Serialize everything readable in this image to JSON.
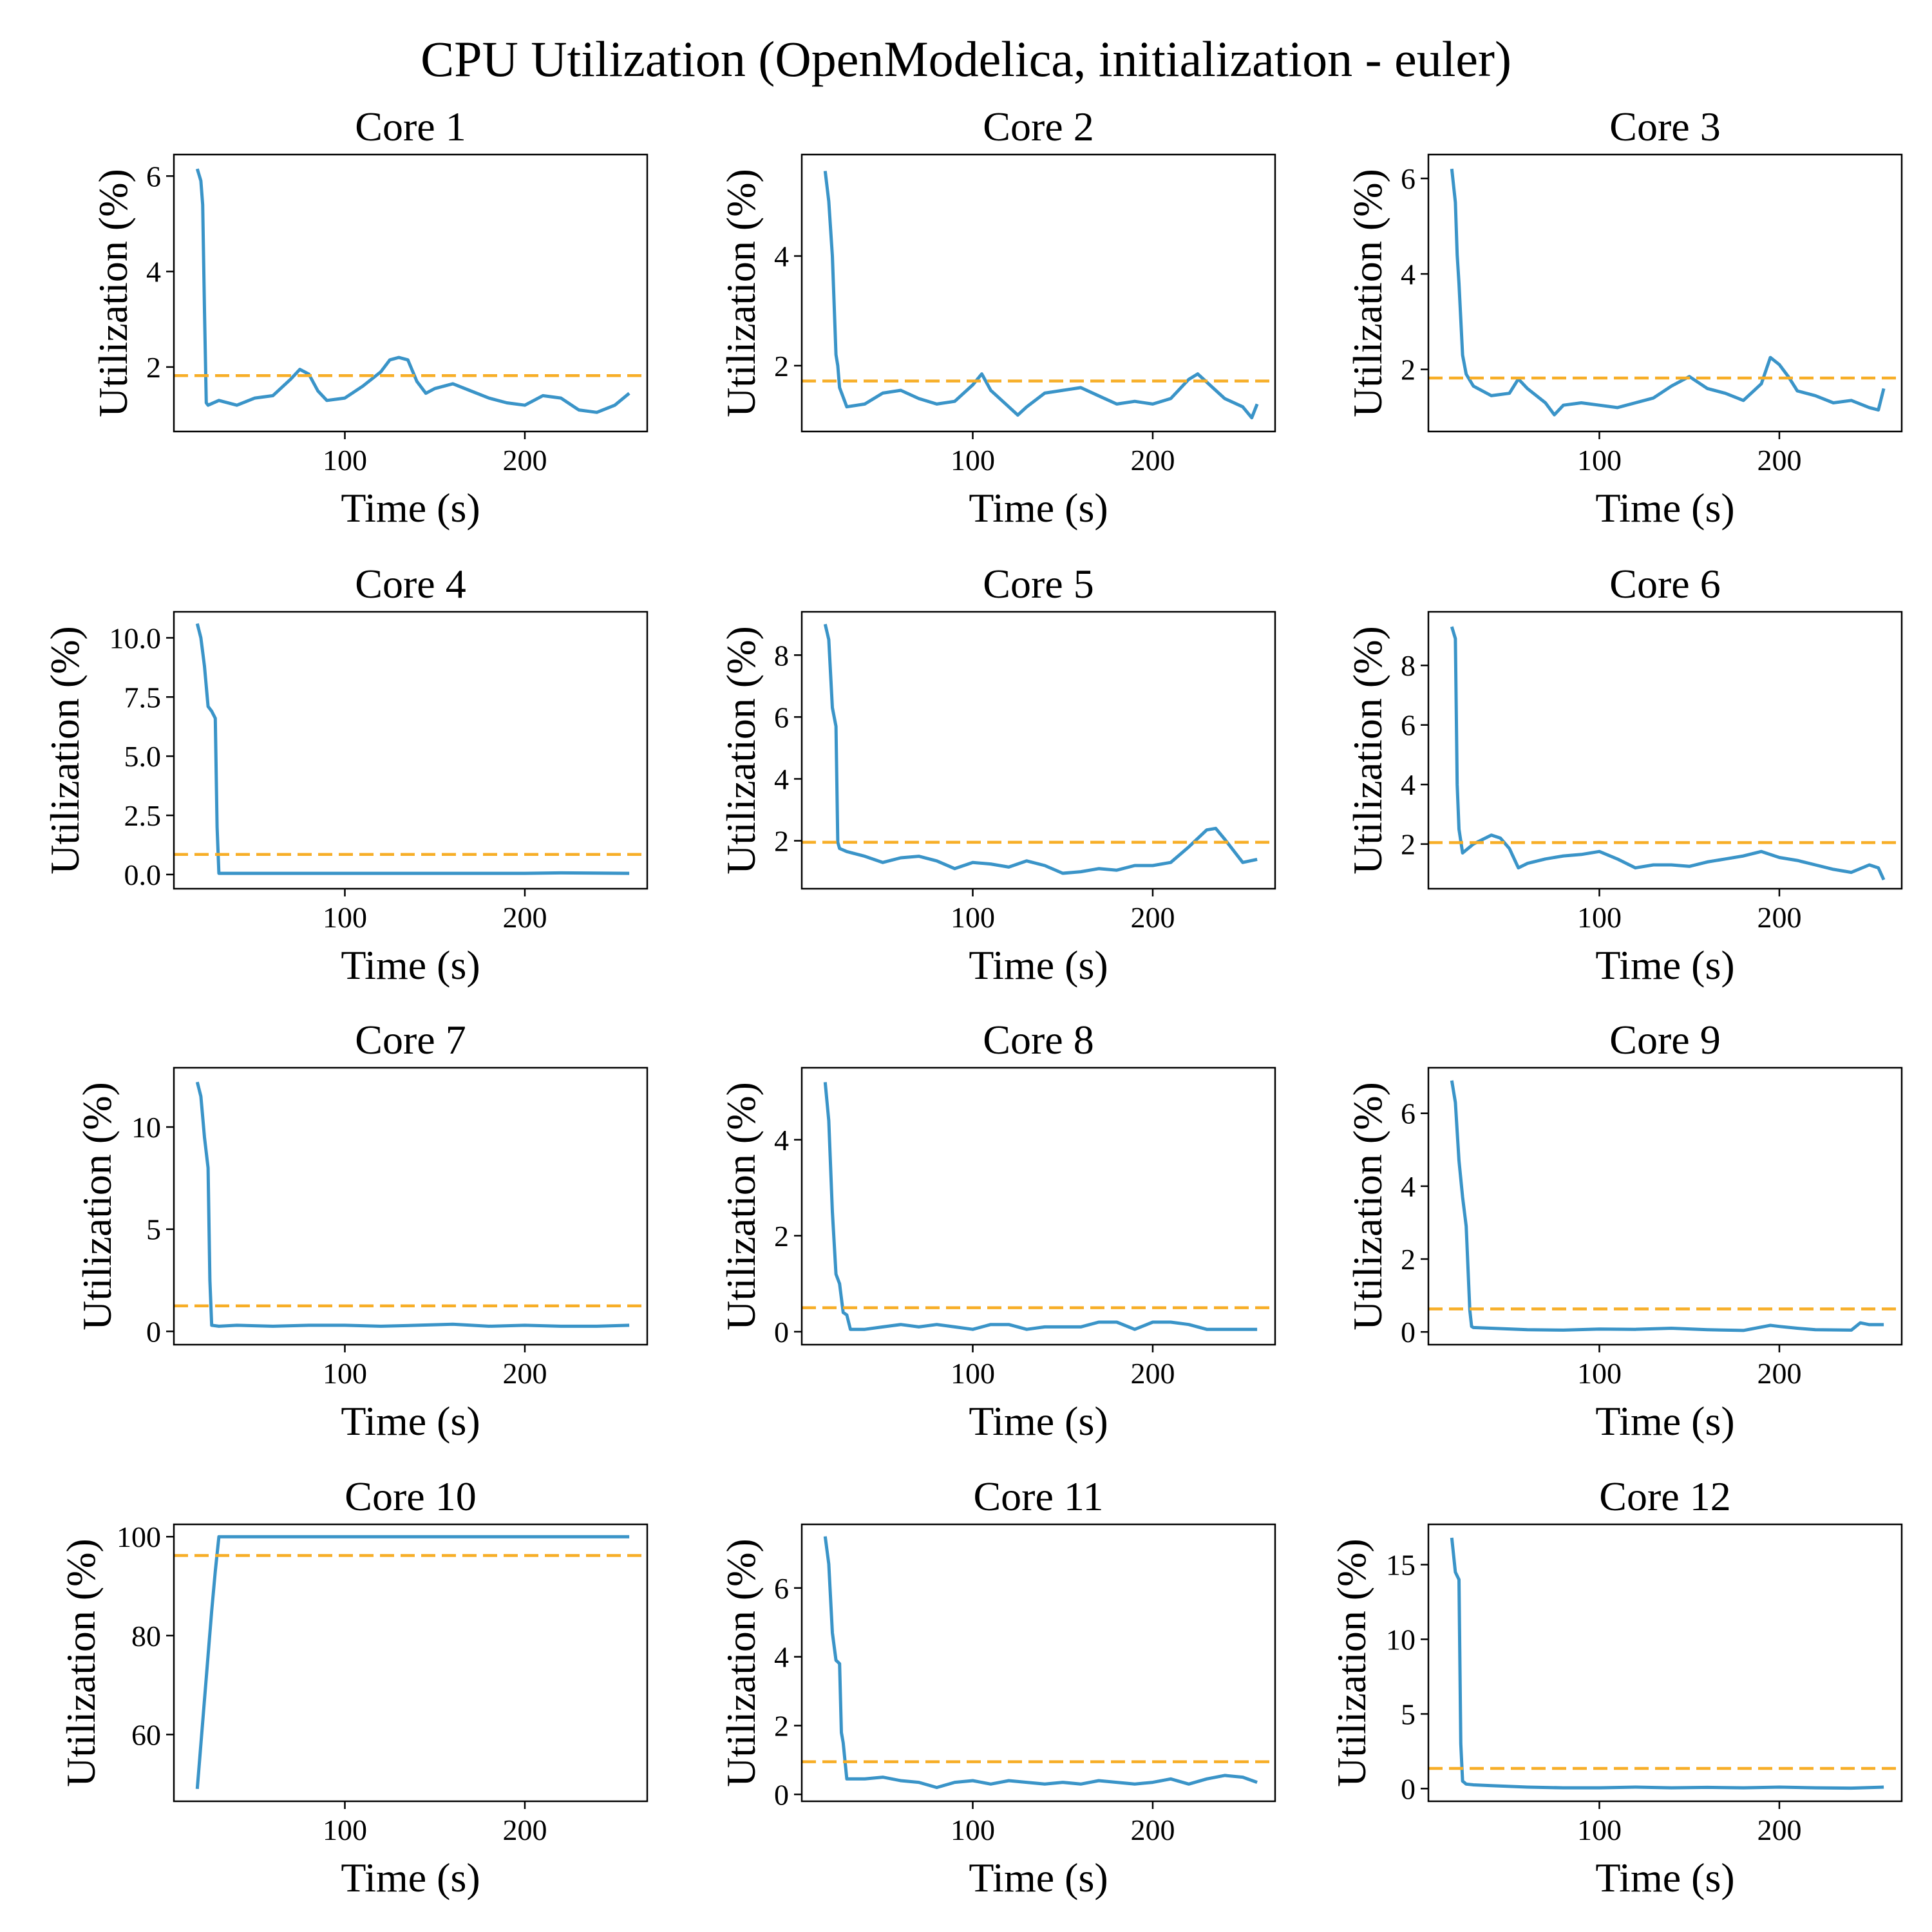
{
  "figure": {
    "title": "CPU Utilization (OpenModelica, initialization - euler)"
  },
  "chart_data": [
    {
      "type": "line",
      "title": "Core 1",
      "xlabel": "Time (s)",
      "ylabel": "Utilization (%)",
      "xlim": [
        5,
        268
      ],
      "ylim": [
        0.65,
        6.45
      ],
      "xticks": [
        100,
        200
      ],
      "yticks": [
        2,
        4,
        6
      ],
      "mean": 1.82,
      "series": [
        {
          "x": [
            18,
            20,
            21,
            22,
            23,
            24,
            30,
            40,
            50,
            60,
            70,
            75,
            80,
            85,
            90,
            100,
            110,
            120,
            125,
            130,
            135,
            140,
            145,
            150,
            160,
            170,
            180,
            190,
            200,
            210,
            220,
            230,
            240,
            250,
            258
          ],
          "y": [
            6.15,
            5.9,
            5.4,
            3.2,
            1.25,
            1.2,
            1.3,
            1.2,
            1.35,
            1.4,
            1.75,
            1.95,
            1.85,
            1.5,
            1.3,
            1.35,
            1.6,
            1.9,
            2.15,
            2.2,
            2.15,
            1.7,
            1.45,
            1.55,
            1.65,
            1.5,
            1.35,
            1.25,
            1.2,
            1.4,
            1.35,
            1.1,
            1.05,
            1.2,
            1.45
          ]
        }
      ]
    },
    {
      "type": "line",
      "title": "Core 2",
      "xlabel": "Time (s)",
      "ylabel": "Utilization (%)",
      "xlim": [
        5,
        268
      ],
      "ylim": [
        0.8,
        5.85
      ],
      "xticks": [
        100,
        200
      ],
      "yticks": [
        2,
        4
      ],
      "mean": 1.72,
      "series": [
        {
          "x": [
            18,
            20,
            22,
            24,
            25,
            26,
            30,
            40,
            50,
            60,
            70,
            80,
            90,
            100,
            105,
            110,
            120,
            125,
            130,
            140,
            150,
            160,
            170,
            180,
            190,
            200,
            210,
            220,
            225,
            230,
            240,
            250,
            255,
            258
          ],
          "y": [
            5.55,
            5.0,
            4.0,
            2.2,
            2.0,
            1.6,
            1.25,
            1.3,
            1.5,
            1.55,
            1.4,
            1.3,
            1.35,
            1.65,
            1.85,
            1.55,
            1.25,
            1.1,
            1.25,
            1.5,
            1.55,
            1.6,
            1.45,
            1.3,
            1.35,
            1.3,
            1.4,
            1.75,
            1.85,
            1.7,
            1.4,
            1.25,
            1.05,
            1.3
          ]
        }
      ]
    },
    {
      "type": "line",
      "title": "Core 3",
      "xlabel": "Time (s)",
      "ylabel": "Utilization (%)",
      "xlim": [
        5,
        268
      ],
      "ylim": [
        0.7,
        6.5
      ],
      "xticks": [
        100,
        200
      ],
      "yticks": [
        2,
        4,
        6
      ],
      "mean": 1.82,
      "series": [
        {
          "x": [
            18,
            20,
            21,
            22,
            24,
            26,
            30,
            40,
            50,
            55,
            60,
            70,
            75,
            80,
            90,
            100,
            110,
            120,
            130,
            140,
            150,
            160,
            170,
            180,
            190,
            195,
            200,
            205,
            210,
            220,
            230,
            240,
            250,
            255,
            258
          ],
          "y": [
            6.2,
            5.5,
            4.4,
            3.8,
            2.3,
            1.9,
            1.65,
            1.45,
            1.5,
            1.8,
            1.6,
            1.3,
            1.05,
            1.25,
            1.3,
            1.25,
            1.2,
            1.3,
            1.4,
            1.65,
            1.85,
            1.6,
            1.5,
            1.35,
            1.7,
            2.25,
            2.1,
            1.85,
            1.55,
            1.45,
            1.3,
            1.35,
            1.2,
            1.15,
            1.6
          ]
        }
      ]
    },
    {
      "type": "line",
      "title": "Core 4",
      "xlabel": "Time (s)",
      "ylabel": "Utilization (%)",
      "xlim": [
        5,
        268
      ],
      "ylim": [
        -0.6,
        11.1
      ],
      "xticks": [
        100,
        200
      ],
      "yticks": [
        0.0,
        2.5,
        5.0,
        7.5,
        10.0
      ],
      "mean": 0.85,
      "series": [
        {
          "x": [
            18,
            20,
            22,
            24,
            26,
            28,
            29,
            30,
            40,
            100,
            150,
            200,
            220,
            240,
            258
          ],
          "y": [
            10.6,
            10.0,
            8.8,
            7.1,
            6.9,
            6.6,
            2.0,
            0.05,
            0.05,
            0.05,
            0.05,
            0.05,
            0.07,
            0.06,
            0.05
          ]
        }
      ]
    },
    {
      "type": "line",
      "title": "Core 5",
      "xlabel": "Time (s)",
      "ylabel": "Utilization (%)",
      "xlim": [
        5,
        268
      ],
      "ylim": [
        0.45,
        9.4
      ],
      "xticks": [
        100,
        200
      ],
      "yticks": [
        2,
        4,
        6,
        8
      ],
      "mean": 1.95,
      "series": [
        {
          "x": [
            18,
            20,
            22,
            24,
            25,
            26,
            30,
            40,
            50,
            60,
            70,
            80,
            90,
            100,
            110,
            120,
            130,
            140,
            150,
            160,
            170,
            180,
            190,
            200,
            210,
            220,
            230,
            235,
            240,
            250,
            258
          ],
          "y": [
            9.0,
            8.5,
            6.3,
            5.7,
            1.95,
            1.75,
            1.65,
            1.5,
            1.3,
            1.45,
            1.5,
            1.35,
            1.1,
            1.3,
            1.25,
            1.15,
            1.35,
            1.2,
            0.95,
            1.0,
            1.1,
            1.05,
            1.2,
            1.2,
            1.3,
            1.8,
            2.35,
            2.4,
            2.05,
            1.3,
            1.4
          ]
        }
      ]
    },
    {
      "type": "line",
      "title": "Core 6",
      "xlabel": "Time (s)",
      "ylabel": "Utilization (%)",
      "xlim": [
        5,
        268
      ],
      "ylim": [
        0.5,
        9.8
      ],
      "xticks": [
        100,
        200
      ],
      "yticks": [
        2,
        4,
        6,
        8
      ],
      "mean": 2.05,
      "series": [
        {
          "x": [
            18,
            20,
            21,
            22,
            24,
            30,
            40,
            45,
            50,
            55,
            60,
            70,
            80,
            90,
            100,
            110,
            120,
            130,
            140,
            150,
            160,
            170,
            180,
            190,
            200,
            210,
            220,
            230,
            240,
            250,
            255,
            258
          ],
          "y": [
            9.3,
            8.9,
            4.0,
            2.5,
            1.7,
            2.0,
            2.3,
            2.2,
            1.85,
            1.2,
            1.35,
            1.5,
            1.6,
            1.65,
            1.75,
            1.5,
            1.2,
            1.3,
            1.3,
            1.25,
            1.4,
            1.5,
            1.6,
            1.75,
            1.55,
            1.45,
            1.3,
            1.15,
            1.05,
            1.3,
            1.2,
            0.8
          ]
        }
      ]
    },
    {
      "type": "line",
      "title": "Core 7",
      "xlabel": "Time (s)",
      "ylabel": "Utilization (%)",
      "xlim": [
        5,
        268
      ],
      "ylim": [
        -0.65,
        12.9
      ],
      "xticks": [
        100,
        200
      ],
      "yticks": [
        0,
        5,
        10
      ],
      "mean": 1.25,
      "series": [
        {
          "x": [
            18,
            20,
            22,
            24,
            25,
            26,
            30,
            40,
            60,
            80,
            100,
            120,
            140,
            160,
            180,
            200,
            220,
            240,
            258
          ],
          "y": [
            12.2,
            11.5,
            9.5,
            8.0,
            2.5,
            0.3,
            0.25,
            0.3,
            0.25,
            0.3,
            0.3,
            0.25,
            0.3,
            0.35,
            0.25,
            0.3,
            0.25,
            0.25,
            0.3
          ]
        }
      ]
    },
    {
      "type": "line",
      "title": "Core 8",
      "xlabel": "Time (s)",
      "ylabel": "Utilization (%)",
      "xlim": [
        5,
        268
      ],
      "ylim": [
        -0.27,
        5.5
      ],
      "xticks": [
        100,
        200
      ],
      "yticks": [
        0,
        2,
        4
      ],
      "mean": 0.5,
      "series": [
        {
          "x": [
            18,
            20,
            22,
            24,
            26,
            28,
            30,
            32,
            40,
            50,
            60,
            70,
            80,
            90,
            100,
            110,
            120,
            130,
            140,
            150,
            160,
            170,
            180,
            190,
            200,
            210,
            220,
            230,
            240,
            250,
            258
          ],
          "y": [
            5.2,
            4.4,
            2.5,
            1.2,
            1.0,
            0.4,
            0.35,
            0.05,
            0.05,
            0.1,
            0.15,
            0.1,
            0.15,
            0.1,
            0.05,
            0.15,
            0.15,
            0.05,
            0.1,
            0.1,
            0.1,
            0.2,
            0.2,
            0.05,
            0.2,
            0.2,
            0.15,
            0.05,
            0.05,
            0.05,
            0.05
          ]
        }
      ]
    },
    {
      "type": "line",
      "title": "Core 9",
      "xlabel": "Time (s)",
      "ylabel": "Utilization (%)",
      "xlim": [
        5,
        268
      ],
      "ylim": [
        -0.35,
        7.25
      ],
      "xticks": [
        100,
        200
      ],
      "yticks": [
        0,
        2,
        4,
        6
      ],
      "mean": 0.63,
      "series": [
        {
          "x": [
            18,
            20,
            22,
            24,
            26,
            28,
            29,
            30,
            40,
            60,
            80,
            100,
            120,
            140,
            160,
            180,
            195,
            200,
            210,
            220,
            240,
            245,
            250,
            258
          ],
          "y": [
            6.9,
            6.3,
            4.7,
            3.7,
            2.9,
            0.6,
            0.15,
            0.12,
            0.1,
            0.06,
            0.05,
            0.08,
            0.07,
            0.1,
            0.06,
            0.04,
            0.18,
            0.15,
            0.1,
            0.06,
            0.05,
            0.25,
            0.2,
            0.2
          ]
        }
      ]
    },
    {
      "type": "line",
      "title": "Core 10",
      "xlabel": "Time (s)",
      "ylabel": "Utilization (%)",
      "xlim": [
        5,
        268
      ],
      "ylim": [
        46.5,
        102.5
      ],
      "xticks": [
        100,
        200
      ],
      "yticks": [
        60,
        80,
        100
      ],
      "mean": 96.2,
      "series": [
        {
          "x": [
            18,
            20,
            22,
            24,
            26,
            28,
            30,
            40,
            100,
            150,
            200,
            258
          ],
          "y": [
            49,
            58,
            67,
            76,
            85,
            93,
            100,
            100,
            100,
            100,
            100,
            100
          ]
        }
      ]
    },
    {
      "type": "line",
      "title": "Core 11",
      "xlabel": "Time (s)",
      "ylabel": "Utilization (%)",
      "xlim": [
        5,
        268
      ],
      "ylim": [
        -0.2,
        7.85
      ],
      "xticks": [
        100,
        200
      ],
      "yticks": [
        0,
        2,
        4,
        6
      ],
      "mean": 0.95,
      "series": [
        {
          "x": [
            18,
            20,
            22,
            24,
            26,
            27,
            28,
            30,
            40,
            50,
            60,
            70,
            80,
            90,
            100,
            110,
            120,
            130,
            140,
            150,
            160,
            170,
            180,
            190,
            200,
            210,
            220,
            230,
            240,
            250,
            258
          ],
          "y": [
            7.5,
            6.7,
            4.7,
            3.9,
            3.8,
            1.8,
            1.5,
            0.45,
            0.45,
            0.5,
            0.4,
            0.35,
            0.2,
            0.35,
            0.4,
            0.3,
            0.4,
            0.35,
            0.3,
            0.35,
            0.3,
            0.4,
            0.35,
            0.3,
            0.35,
            0.45,
            0.3,
            0.45,
            0.55,
            0.5,
            0.35
          ]
        }
      ]
    },
    {
      "type": "line",
      "title": "Core 12",
      "xlabel": "Time (s)",
      "ylabel": "Utilization (%)",
      "xlim": [
        5,
        268
      ],
      "ylim": [
        -0.85,
        17.7
      ],
      "xticks": [
        100,
        200
      ],
      "yticks": [
        0,
        5,
        10,
        15
      ],
      "mean": 1.35,
      "series": [
        {
          "x": [
            18,
            20,
            22,
            23,
            24,
            26,
            30,
            40,
            60,
            80,
            100,
            120,
            140,
            160,
            180,
            200,
            220,
            240,
            258
          ],
          "y": [
            16.8,
            14.5,
            14.0,
            3.0,
            0.5,
            0.3,
            0.25,
            0.2,
            0.1,
            0.05,
            0.05,
            0.1,
            0.05,
            0.08,
            0.05,
            0.1,
            0.05,
            0.03,
            0.1
          ]
        }
      ]
    }
  ]
}
